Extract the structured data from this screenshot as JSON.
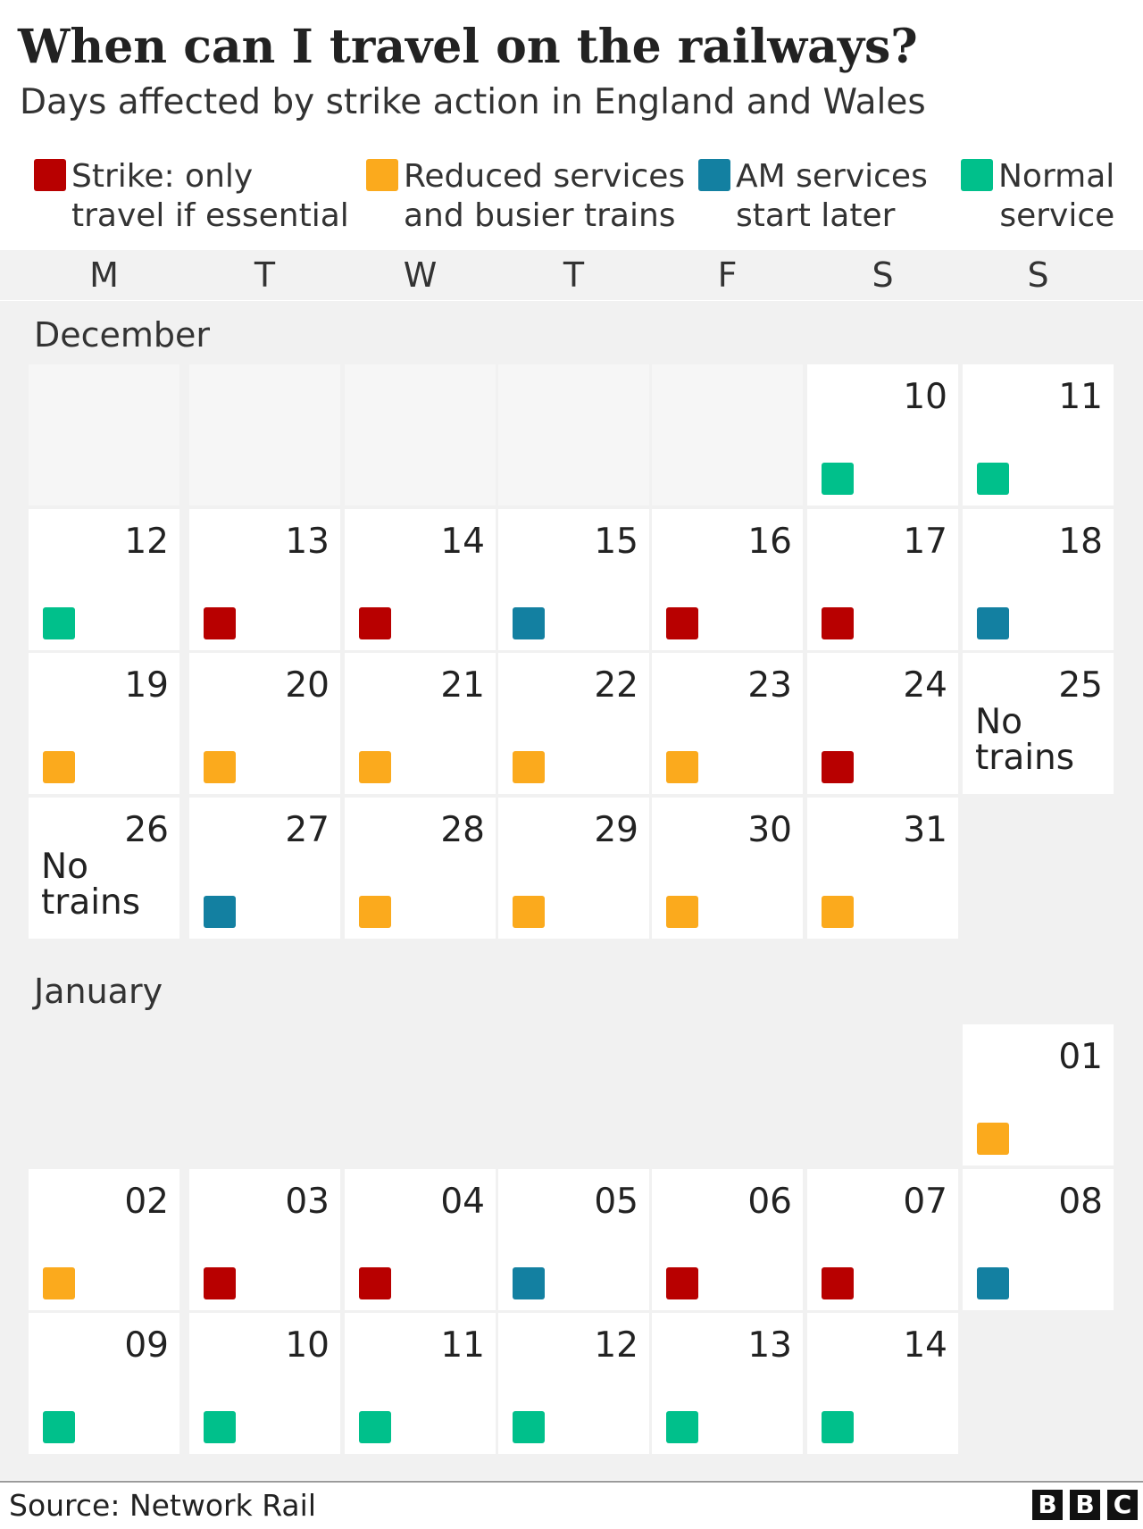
{
  "header": {
    "title": "When can I travel on the railways?",
    "subtitle": "Days affected by strike action in England and Wales"
  },
  "legend": [
    {
      "key": "strike",
      "label": "Strike: only\ntravel if essential",
      "color": "#b80000"
    },
    {
      "key": "reduced",
      "label": "Reduced services\nand busier trains",
      "color": "#fbaa1d"
    },
    {
      "key": "am",
      "label": "AM services\nstart later",
      "color": "#1380a1"
    },
    {
      "key": "normal",
      "label": "Normal\nservice",
      "color": "#00c08b"
    }
  ],
  "weekdays": [
    "M",
    "T",
    "W",
    "T",
    "F",
    "S",
    "S"
  ],
  "chart_data": {
    "type": "table",
    "title": "When can I travel on the railways?",
    "subtitle": "Days affected by strike action in England and Wales",
    "months": [
      {
        "name": "December",
        "start_weekday": 5,
        "days": [
          {
            "day": "10",
            "status": "normal"
          },
          {
            "day": "11",
            "status": "normal"
          },
          {
            "day": "12",
            "status": "normal"
          },
          {
            "day": "13",
            "status": "strike"
          },
          {
            "day": "14",
            "status": "strike"
          },
          {
            "day": "15",
            "status": "am"
          },
          {
            "day": "16",
            "status": "strike"
          },
          {
            "day": "17",
            "status": "strike"
          },
          {
            "day": "18",
            "status": "am"
          },
          {
            "day": "19",
            "status": "reduced"
          },
          {
            "day": "20",
            "status": "reduced"
          },
          {
            "day": "21",
            "status": "reduced"
          },
          {
            "day": "22",
            "status": "reduced"
          },
          {
            "day": "23",
            "status": "reduced"
          },
          {
            "day": "24",
            "status": "strike"
          },
          {
            "day": "25",
            "status": "none",
            "note": "No\ntrains"
          },
          {
            "day": "26",
            "status": "none",
            "note": "No\ntrains"
          },
          {
            "day": "27",
            "status": "am"
          },
          {
            "day": "28",
            "status": "reduced"
          },
          {
            "day": "29",
            "status": "reduced"
          },
          {
            "day": "30",
            "status": "reduced"
          },
          {
            "day": "31",
            "status": "reduced"
          }
        ]
      },
      {
        "name": "January",
        "start_weekday": 6,
        "days": [
          {
            "day": "01",
            "status": "reduced"
          },
          {
            "day": "02",
            "status": "reduced"
          },
          {
            "day": "03",
            "status": "strike"
          },
          {
            "day": "04",
            "status": "strike"
          },
          {
            "day": "05",
            "status": "am"
          },
          {
            "day": "06",
            "status": "strike"
          },
          {
            "day": "07",
            "status": "strike"
          },
          {
            "day": "08",
            "status": "am"
          },
          {
            "day": "09",
            "status": "normal"
          },
          {
            "day": "10",
            "status": "normal"
          },
          {
            "day": "11",
            "status": "normal"
          },
          {
            "day": "12",
            "status": "normal"
          },
          {
            "day": "13",
            "status": "normal"
          },
          {
            "day": "14",
            "status": "normal"
          }
        ]
      }
    ]
  },
  "footer": {
    "source": "Source: Network Rail",
    "logo": [
      "B",
      "B",
      "C"
    ]
  }
}
